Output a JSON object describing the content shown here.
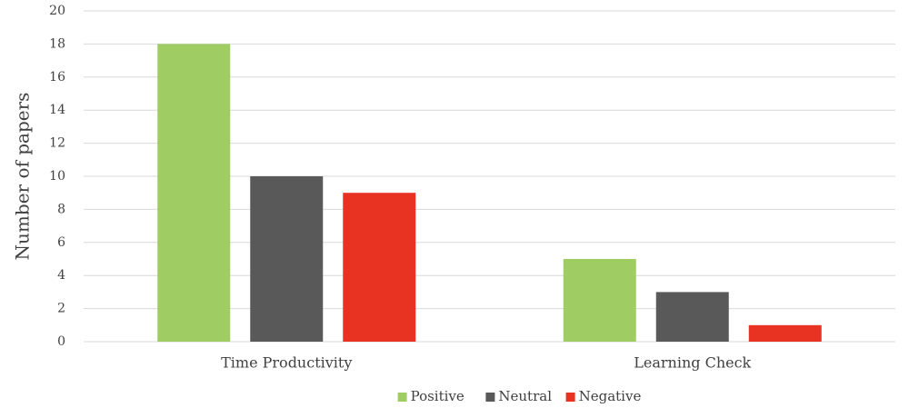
{
  "chart_data": {
    "type": "bar",
    "title": "",
    "xlabel": "",
    "ylabel": "Number of papers",
    "ylim": [
      0,
      20
    ],
    "yticks": [
      0,
      2,
      4,
      6,
      8,
      10,
      12,
      14,
      16,
      18,
      20
    ],
    "grid": true,
    "legend_position": "bottom",
    "categories": [
      "Time Productivity",
      "Learning Check"
    ],
    "series": [
      {
        "name": "Positive",
        "color": "#9fcd63",
        "values": [
          18,
          5
        ]
      },
      {
        "name": "Neutral",
        "color": "#595959",
        "values": [
          10,
          3
        ]
      },
      {
        "name": "Negative",
        "color": "#e83323",
        "values": [
          9,
          1
        ]
      }
    ]
  }
}
